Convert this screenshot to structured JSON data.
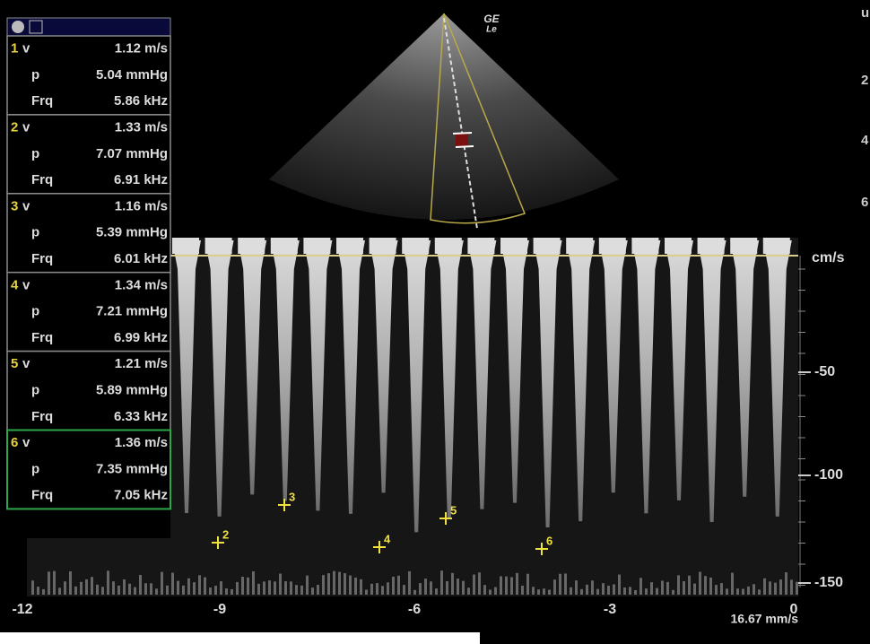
{
  "panel": {
    "groups": [
      {
        "index": "1",
        "rows": [
          [
            "v",
            "1.12 m/s"
          ],
          [
            "p",
            "5.04 mmHg"
          ],
          [
            "Frq",
            "5.86 kHz"
          ]
        ]
      },
      {
        "index": "2",
        "rows": [
          [
            "v",
            "1.33 m/s"
          ],
          [
            "p",
            "7.07 mmHg"
          ],
          [
            "Frq",
            "6.91 kHz"
          ]
        ]
      },
      {
        "index": "3",
        "rows": [
          [
            "v",
            "1.16 m/s"
          ],
          [
            "p",
            "5.39 mmHg"
          ],
          [
            "Frq",
            "6.01 kHz"
          ]
        ]
      },
      {
        "index": "4",
        "rows": [
          [
            "v",
            "1.34 m/s"
          ],
          [
            "p",
            "7.21 mmHg"
          ],
          [
            "Frq",
            "6.99 kHz"
          ]
        ]
      },
      {
        "index": "5",
        "rows": [
          [
            "v",
            "1.21 m/s"
          ],
          [
            "p",
            "5.89 mmHg"
          ],
          [
            "Frq",
            "6.33 kHz"
          ]
        ]
      },
      {
        "index": "6",
        "rows": [
          [
            "v",
            "1.36 m/s"
          ],
          [
            "p",
            "7.35 mmHg"
          ],
          [
            "Frq",
            "7.05 kHz"
          ]
        ]
      }
    ]
  },
  "logo": {
    "line1": "GE",
    "line2": "Le"
  },
  "depth_labels": [
    "u",
    "2",
    "4",
    "6"
  ],
  "velocity_scale": {
    "unit": "cm/s",
    "ticks": [
      "-50",
      "-100",
      "-150"
    ]
  },
  "time_axis": {
    "ticks": [
      "-12",
      "-9",
      "-6",
      "-3",
      "0"
    ],
    "sweep": "16.67 mm/s"
  },
  "markers": [
    "2",
    "3",
    "4",
    "5",
    "6"
  ]
}
